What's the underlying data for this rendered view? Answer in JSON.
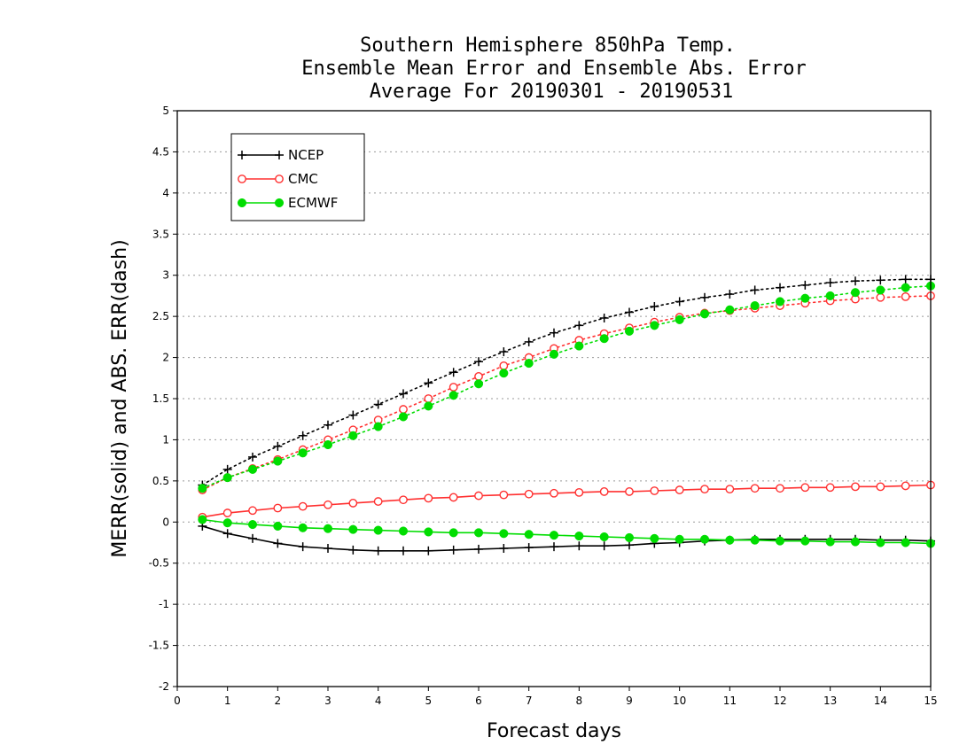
{
  "chart_data": {
    "type": "line",
    "title": [
      "Southern Hemisphere 850hPa Temp.",
      "Ensemble Mean Error and Ensemble Abs. Error",
      "Average For 20190301 - 20190531"
    ],
    "xlabel": "Forecast days",
    "ylabel": "MERR(solid) and ABS. ERR(dash)",
    "xlim": [
      0,
      15
    ],
    "ylim": [
      -2,
      5
    ],
    "xticks": [
      0,
      1,
      2,
      3,
      4,
      5,
      6,
      7,
      8,
      9,
      10,
      11,
      12,
      13,
      14,
      15
    ],
    "xtick_labels": [
      "0",
      "1",
      "2",
      "3",
      "4",
      "5",
      "6",
      "7",
      "8",
      "9",
      "10",
      "11",
      "12",
      "13",
      "14",
      "15"
    ],
    "yticks": [
      -2,
      -1.5,
      -1,
      -0.5,
      0,
      0.5,
      1,
      1.5,
      2,
      2.5,
      3,
      3.5,
      4,
      4.5,
      5
    ],
    "ytick_labels": [
      "-2",
      "-1.5",
      "-1",
      "-0.5",
      "0",
      "0.5",
      "1",
      "1.5",
      "2",
      "2.5",
      "3",
      "3.5",
      "4",
      "4.5",
      "5"
    ],
    "grid": "dotted horizontal",
    "legend": "top-left",
    "x": [
      0.5,
      1,
      1.5,
      2,
      2.5,
      3,
      3.5,
      4,
      4.5,
      5,
      5.5,
      6,
      6.5,
      7,
      7.5,
      8,
      8.5,
      9,
      9.5,
      10,
      10.5,
      11,
      11.5,
      12,
      12.5,
      13,
      13.5,
      14,
      14.5,
      15
    ],
    "series": [
      {
        "name": "NCEP",
        "color": "#000000",
        "marker": "plus",
        "mean_error": [
          -0.05,
          -0.14,
          -0.2,
          -0.26,
          -0.3,
          -0.32,
          -0.34,
          -0.35,
          -0.35,
          -0.35,
          -0.34,
          -0.33,
          -0.32,
          -0.31,
          -0.3,
          -0.29,
          -0.29,
          -0.28,
          -0.26,
          -0.25,
          -0.23,
          -0.22,
          -0.21,
          -0.21,
          -0.21,
          -0.21,
          -0.21,
          -0.22,
          -0.22,
          -0.23
        ],
        "abs_error": [
          0.45,
          0.64,
          0.79,
          0.92,
          1.05,
          1.18,
          1.3,
          1.43,
          1.56,
          1.69,
          1.82,
          1.95,
          2.07,
          2.19,
          2.3,
          2.39,
          2.48,
          2.55,
          2.62,
          2.68,
          2.73,
          2.77,
          2.82,
          2.85,
          2.88,
          2.91,
          2.93,
          2.94,
          2.95,
          2.95
        ]
      },
      {
        "name": "CMC",
        "color": "#ff3030",
        "marker": "open-circle",
        "mean_error": [
          0.06,
          0.11,
          0.14,
          0.17,
          0.19,
          0.21,
          0.23,
          0.25,
          0.27,
          0.29,
          0.3,
          0.32,
          0.33,
          0.34,
          0.35,
          0.36,
          0.37,
          0.37,
          0.38,
          0.39,
          0.4,
          0.4,
          0.41,
          0.41,
          0.42,
          0.42,
          0.43,
          0.43,
          0.44,
          0.45
        ],
        "abs_error": [
          0.39,
          0.54,
          0.65,
          0.76,
          0.88,
          1.0,
          1.12,
          1.24,
          1.37,
          1.5,
          1.64,
          1.77,
          1.9,
          2.0,
          2.11,
          2.21,
          2.29,
          2.36,
          2.43,
          2.49,
          2.54,
          2.57,
          2.6,
          2.63,
          2.66,
          2.69,
          2.71,
          2.73,
          2.74,
          2.75
        ]
      },
      {
        "name": "ECMWF",
        "color": "#00dd00",
        "marker": "filled-circle",
        "mean_error": [
          0.03,
          -0.01,
          -0.03,
          -0.05,
          -0.07,
          -0.08,
          -0.09,
          -0.1,
          -0.11,
          -0.12,
          -0.13,
          -0.13,
          -0.14,
          -0.15,
          -0.16,
          -0.17,
          -0.18,
          -0.19,
          -0.2,
          -0.21,
          -0.21,
          -0.22,
          -0.22,
          -0.23,
          -0.23,
          -0.24,
          -0.24,
          -0.25,
          -0.25,
          -0.26
        ],
        "abs_error": [
          0.41,
          0.54,
          0.64,
          0.74,
          0.84,
          0.94,
          1.05,
          1.16,
          1.28,
          1.41,
          1.54,
          1.68,
          1.81,
          1.93,
          2.04,
          2.14,
          2.23,
          2.32,
          2.39,
          2.46,
          2.53,
          2.58,
          2.63,
          2.68,
          2.72,
          2.75,
          2.79,
          2.82,
          2.85,
          2.87
        ]
      }
    ]
  }
}
